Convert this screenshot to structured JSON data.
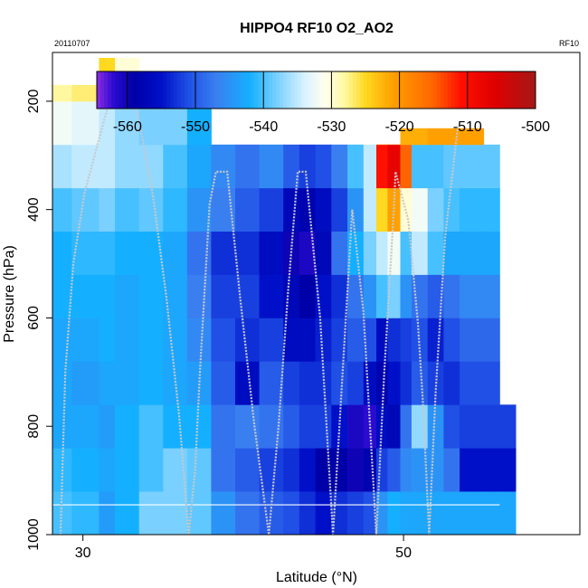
{
  "chart_data": {
    "type": "heatmap",
    "title": "HIPPO4 RF10 O2_AO2",
    "subtitle_left": "20110707",
    "subtitle_right": "RF10",
    "xlabel": "Latitude (°N)",
    "ylabel": "Pressure (hPa)",
    "x_ticks": [
      "30",
      "50"
    ],
    "y_ticks": [
      "200",
      "400",
      "600",
      "800",
      "1000"
    ],
    "xlim": [
      28.1,
      61.0
    ],
    "ylim": [
      1000,
      110
    ],
    "colorbar": {
      "ticks": [
        "-560",
        "-550",
        "-540",
        "-530",
        "-520",
        "-510",
        "-500"
      ],
      "range": [
        -564.5,
        -500
      ],
      "stops": [
        {
          "v": -564.5,
          "c": "#8a2be2"
        },
        {
          "v": -562,
          "c": "#2a0bd0"
        },
        {
          "v": -559,
          "c": "#0000a8"
        },
        {
          "v": -555,
          "c": "#0010c8"
        },
        {
          "v": -551,
          "c": "#2050e6"
        },
        {
          "v": -547,
          "c": "#3a7ff0"
        },
        {
          "v": -542,
          "c": "#14b0ff"
        },
        {
          "v": -538,
          "c": "#7ad0ff"
        },
        {
          "v": -534,
          "c": "#d8f2ff"
        },
        {
          "v": -531,
          "c": "#fffff0"
        },
        {
          "v": -528,
          "c": "#fff8a0"
        },
        {
          "v": -525,
          "c": "#ffd820"
        },
        {
          "v": -521,
          "c": "#ffa000"
        },
        {
          "v": -515,
          "c": "#ff6400"
        },
        {
          "v": -511,
          "c": "#ff1000"
        },
        {
          "v": -506,
          "c": "#e00000"
        },
        {
          "v": -500,
          "c": "#a41818"
        }
      ]
    },
    "columns": [
      {
        "lat0": 28.1,
        "lat1": 29.3,
        "top": 170,
        "vals": [
          -540,
          -541,
          -543,
          -543,
          -543,
          -542,
          -542,
          -540,
          -536,
          -532,
          -528
        ]
      },
      {
        "lat0": 29.3,
        "lat1": 31.0,
        "top": 170,
        "vals": [
          -541,
          -542,
          -543,
          -544,
          -543,
          -542,
          -541,
          -539,
          -535,
          -533,
          -527
        ]
      },
      {
        "lat0": 31.0,
        "lat1": 32.0,
        "top": 120,
        "vals": [
          -544,
          -543,
          -544,
          -543,
          -542,
          -542,
          -541,
          -538,
          -535,
          -535,
          -525
        ]
      },
      {
        "lat0": 32.0,
        "lat1": 33.5,
        "top": 120,
        "vals": [
          -542,
          -542,
          -542,
          -543,
          -543,
          -543,
          -542,
          -540,
          -537,
          -537,
          -530
        ]
      },
      {
        "lat0": 33.5,
        "lat1": 35.0,
        "top": 170,
        "vals": [
          -538,
          -540,
          -540,
          -542,
          -542,
          -542,
          -542,
          -539,
          -537,
          -538,
          -534
        ]
      },
      {
        "lat0": 35.0,
        "lat1": 36.5,
        "top": 170,
        "vals": [
          -538,
          -538,
          -542,
          -543,
          -543,
          -543,
          -543,
          -541,
          -540,
          -538,
          -540
        ]
      },
      {
        "lat0": 36.5,
        "lat1": 38.0,
        "top": 170,
        "vals": [
          -539,
          -539,
          -542,
          -544,
          -546,
          -547,
          -548,
          -545,
          -543,
          -542,
          -540
        ]
      },
      {
        "lat0": 38.0,
        "lat1": 39.5,
        "top": 300,
        "vals": [
          -545,
          -548,
          -548,
          -550,
          -551,
          -552,
          -553,
          -547,
          -546,
          -540
        ]
      },
      {
        "lat0": 39.5,
        "lat1": 41.0,
        "top": 300,
        "vals": [
          -548,
          -550,
          -547,
          -556,
          -553,
          -552,
          -553,
          -550,
          -548,
          -543
        ]
      },
      {
        "lat0": 41.0,
        "lat1": 42.5,
        "top": 300,
        "vals": [
          -550,
          -552,
          -548,
          -550,
          -552,
          -555,
          -556,
          -552,
          -546,
          -541
        ]
      },
      {
        "lat0": 42.5,
        "lat1": 43.5,
        "top": 300,
        "vals": [
          -551,
          -553,
          -550,
          -552,
          -556,
          -557,
          -560,
          -557,
          -550,
          -544
        ]
      },
      {
        "lat0": 43.5,
        "lat1": 44.5,
        "top": 300,
        "vals": [
          -553,
          -555,
          -552,
          -553,
          -556,
          -559,
          -561,
          -558,
          -552,
          -546
        ]
      },
      {
        "lat0": 44.5,
        "lat1": 45.5,
        "top": 300,
        "vals": [
          -555,
          -559,
          -552,
          -553,
          -554,
          -555,
          -557,
          -556,
          -551,
          -545
        ]
      },
      {
        "lat0": 45.5,
        "lat1": 46.5,
        "top": 300,
        "vals": [
          -553,
          -559,
          -555,
          -551,
          -552,
          -553,
          -548,
          -552,
          -547,
          -535
        ]
      },
      {
        "lat0": 46.5,
        "lat1": 47.5,
        "top": 300,
        "vals": [
          -552,
          -560,
          -561,
          -552,
          -550,
          -548,
          -542,
          -545,
          -540,
          -532
        ]
      },
      {
        "lat0": 47.5,
        "lat1": 48.3,
        "top": 300,
        "vals": [
          -551,
          -558,
          -562,
          -556,
          -551,
          -545,
          -538,
          -535,
          -535,
          -525
        ]
      },
      {
        "lat0": 48.3,
        "lat1": 49.0,
        "top": 280,
        "vals": [
          -545,
          -552,
          -556,
          -558,
          -556,
          -540,
          -535,
          -525,
          -511,
          -522
        ]
      },
      {
        "lat0": 49.0,
        "lat1": 49.8,
        "top": 280,
        "vals": [
          -542,
          -550,
          -557,
          -555,
          -553,
          -538,
          -532,
          -521,
          -507,
          -520
        ]
      },
      {
        "lat0": 49.8,
        "lat1": 50.5,
        "top": 250,
        "vals": [
          -543,
          -546,
          -548,
          -553,
          -552,
          -545,
          -540,
          -530,
          -515,
          -522
        ]
      },
      {
        "lat0": 50.5,
        "lat1": 51.5,
        "top": 250,
        "vals": [
          -543,
          -545,
          -537,
          -550,
          -551,
          -548,
          -535,
          -532,
          -540,
          -522
        ]
      },
      {
        "lat0": 51.5,
        "lat1": 52.5,
        "top": 250,
        "vals": [
          -543,
          -545,
          -545,
          -552,
          -554,
          -550,
          -540,
          -538,
          -540,
          -521
        ]
      },
      {
        "lat0": 52.5,
        "lat1": 53.5,
        "top": 250,
        "vals": [
          -543,
          -548,
          -551,
          -553,
          -551,
          -548,
          -543,
          -540,
          -539,
          -521
        ]
      },
      {
        "lat0": 53.5,
        "lat1": 55.0,
        "top": 250,
        "vals": [
          -543,
          -555,
          -552,
          -551,
          -549,
          -546,
          -543,
          -541,
          -539,
          -521
        ]
      },
      {
        "lat0": 55.0,
        "lat1": 56.0,
        "top": 250,
        "vals": [
          -543,
          -555,
          -552,
          -551,
          -549,
          -546,
          -543,
          -541,
          -539
        ]
      },
      {
        "lat0": 56.0,
        "lat1": 57.0,
        "top": 250,
        "vals": [
          -543,
          -555,
          -552
        ]
      }
    ],
    "flight_track": [
      [
        28.6,
        1000
      ],
      [
        28.9,
        700
      ],
      [
        29.4,
        500
      ],
      [
        30.1,
        370
      ],
      [
        31.0,
        270
      ],
      [
        31.7,
        195
      ],
      [
        33.2,
        195
      ],
      [
        33.6,
        250
      ],
      [
        34.4,
        380
      ],
      [
        35.2,
        560
      ],
      [
        36.0,
        780
      ],
      [
        36.6,
        1000
      ],
      [
        37.0,
        880
      ],
      [
        37.3,
        700
      ],
      [
        37.9,
        390
      ],
      [
        38.3,
        330
      ],
      [
        39.0,
        330
      ],
      [
        39.8,
        560
      ],
      [
        40.7,
        800
      ],
      [
        41.6,
        1000
      ],
      [
        42.2,
        800
      ],
      [
        42.8,
        550
      ],
      [
        43.4,
        330
      ],
      [
        43.9,
        330
      ],
      [
        44.8,
        600
      ],
      [
        45.6,
        1000
      ],
      [
        46.1,
        750
      ],
      [
        46.8,
        400
      ],
      [
        47.5,
        590
      ],
      [
        48.3,
        1000
      ],
      [
        48.8,
        700
      ],
      [
        49.4,
        400
      ],
      [
        49.5,
        330
      ],
      [
        50.3,
        420
      ],
      [
        50.9,
        610
      ],
      [
        51.2,
        750
      ],
      [
        51.6,
        1000
      ],
      [
        52.0,
        740
      ],
      [
        52.6,
        450
      ],
      [
        53.4,
        245
      ]
    ]
  }
}
